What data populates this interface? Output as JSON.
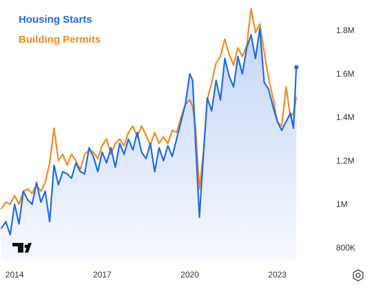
{
  "chart_data": {
    "type": "line",
    "title": "",
    "xlabel": "",
    "ylabel": "",
    "x_ticks": [
      "2014",
      "2017",
      "2020",
      "2023"
    ],
    "y_ticks": [
      "800K",
      "1M",
      "1.2M",
      "1.4M",
      "1.6M",
      "1.8M"
    ],
    "ylim": [
      800000,
      1900000
    ],
    "legend_position": "top-left",
    "grid": false,
    "series": [
      {
        "name": "Housing Starts",
        "color": "#1e6be6",
        "fill": "area",
        "points": [
          [
            2013.55,
            890000
          ],
          [
            2013.7,
            920000
          ],
          [
            2013.85,
            860000
          ],
          [
            2014.0,
            1000000
          ],
          [
            2014.15,
            910000
          ],
          [
            2014.3,
            1060000
          ],
          [
            2014.45,
            1020000
          ],
          [
            2014.6,
            1000000
          ],
          [
            2014.75,
            1100000
          ],
          [
            2014.9,
            1010000
          ],
          [
            2015.05,
            1060000
          ],
          [
            2015.2,
            920000
          ],
          [
            2015.35,
            1180000
          ],
          [
            2015.5,
            1090000
          ],
          [
            2015.65,
            1150000
          ],
          [
            2015.8,
            1140000
          ],
          [
            2015.95,
            1120000
          ],
          [
            2016.1,
            1190000
          ],
          [
            2016.25,
            1150000
          ],
          [
            2016.4,
            1140000
          ],
          [
            2016.55,
            1260000
          ],
          [
            2016.7,
            1220000
          ],
          [
            2016.85,
            1150000
          ],
          [
            2017.0,
            1240000
          ],
          [
            2017.15,
            1190000
          ],
          [
            2017.3,
            1260000
          ],
          [
            2017.45,
            1170000
          ],
          [
            2017.6,
            1280000
          ],
          [
            2017.75,
            1230000
          ],
          [
            2017.9,
            1300000
          ],
          [
            2018.05,
            1250000
          ],
          [
            2018.2,
            1330000
          ],
          [
            2018.35,
            1240000
          ],
          [
            2018.5,
            1210000
          ],
          [
            2018.65,
            1280000
          ],
          [
            2018.8,
            1150000
          ],
          [
            2018.95,
            1260000
          ],
          [
            2019.1,
            1200000
          ],
          [
            2019.25,
            1270000
          ],
          [
            2019.4,
            1220000
          ],
          [
            2019.55,
            1300000
          ],
          [
            2019.7,
            1380000
          ],
          [
            2019.85,
            1460000
          ],
          [
            2020.0,
            1600000
          ],
          [
            2020.1,
            1570000
          ],
          [
            2020.2,
            1280000
          ],
          [
            2020.33,
            940000
          ],
          [
            2020.47,
            1230000
          ],
          [
            2020.6,
            1490000
          ],
          [
            2020.75,
            1430000
          ],
          [
            2020.9,
            1570000
          ],
          [
            2021.05,
            1480000
          ],
          [
            2021.2,
            1670000
          ],
          [
            2021.35,
            1590000
          ],
          [
            2021.5,
            1540000
          ],
          [
            2021.65,
            1680000
          ],
          [
            2021.8,
            1600000
          ],
          [
            2021.95,
            1720000
          ],
          [
            2022.1,
            1780000
          ],
          [
            2022.25,
            1670000
          ],
          [
            2022.4,
            1810000
          ],
          [
            2022.55,
            1560000
          ],
          [
            2022.7,
            1530000
          ],
          [
            2022.85,
            1450000
          ],
          [
            2023.0,
            1380000
          ],
          [
            2023.15,
            1340000
          ],
          [
            2023.3,
            1380000
          ],
          [
            2023.45,
            1420000
          ],
          [
            2023.55,
            1350000
          ],
          [
            2023.65,
            1630000
          ]
        ]
      },
      {
        "name": "Building Permits",
        "color": "#f08a24",
        "fill": "none",
        "points": [
          [
            2013.55,
            980000
          ],
          [
            2013.7,
            1010000
          ],
          [
            2013.85,
            1000000
          ],
          [
            2014.0,
            1040000
          ],
          [
            2014.15,
            1000000
          ],
          [
            2014.3,
            1060000
          ],
          [
            2014.45,
            1070000
          ],
          [
            2014.6,
            1050000
          ],
          [
            2014.75,
            1090000
          ],
          [
            2014.9,
            1060000
          ],
          [
            2015.05,
            1100000
          ],
          [
            2015.2,
            1190000
          ],
          [
            2015.35,
            1350000
          ],
          [
            2015.5,
            1200000
          ],
          [
            2015.65,
            1230000
          ],
          [
            2015.8,
            1180000
          ],
          [
            2015.95,
            1230000
          ],
          [
            2016.1,
            1200000
          ],
          [
            2016.25,
            1160000
          ],
          [
            2016.4,
            1230000
          ],
          [
            2016.55,
            1250000
          ],
          [
            2016.7,
            1240000
          ],
          [
            2016.85,
            1210000
          ],
          [
            2017.0,
            1270000
          ],
          [
            2017.15,
            1300000
          ],
          [
            2017.3,
            1230000
          ],
          [
            2017.45,
            1280000
          ],
          [
            2017.6,
            1300000
          ],
          [
            2017.75,
            1270000
          ],
          [
            2017.9,
            1330000
          ],
          [
            2018.05,
            1360000
          ],
          [
            2018.2,
            1310000
          ],
          [
            2018.35,
            1360000
          ],
          [
            2018.5,
            1320000
          ],
          [
            2018.65,
            1270000
          ],
          [
            2018.8,
            1330000
          ],
          [
            2018.95,
            1280000
          ],
          [
            2019.1,
            1310000
          ],
          [
            2019.25,
            1280000
          ],
          [
            2019.4,
            1340000
          ],
          [
            2019.55,
            1330000
          ],
          [
            2019.7,
            1400000
          ],
          [
            2019.85,
            1460000
          ],
          [
            2020.0,
            1480000
          ],
          [
            2020.1,
            1450000
          ],
          [
            2020.2,
            1350000
          ],
          [
            2020.33,
            1070000
          ],
          [
            2020.47,
            1240000
          ],
          [
            2020.6,
            1480000
          ],
          [
            2020.75,
            1560000
          ],
          [
            2020.9,
            1650000
          ],
          [
            2021.05,
            1680000
          ],
          [
            2021.2,
            1760000
          ],
          [
            2021.35,
            1690000
          ],
          [
            2021.5,
            1640000
          ],
          [
            2021.65,
            1720000
          ],
          [
            2021.8,
            1680000
          ],
          [
            2021.95,
            1730000
          ],
          [
            2022.1,
            1900000
          ],
          [
            2022.25,
            1790000
          ],
          [
            2022.4,
            1830000
          ],
          [
            2022.55,
            1700000
          ],
          [
            2022.7,
            1580000
          ],
          [
            2022.85,
            1490000
          ],
          [
            2023.0,
            1380000
          ],
          [
            2023.15,
            1360000
          ],
          [
            2023.3,
            1540000
          ],
          [
            2023.45,
            1400000
          ],
          [
            2023.55,
            1420000
          ],
          [
            2023.65,
            1490000
          ]
        ]
      }
    ]
  },
  "legend": {
    "starts_label": "Housing Starts",
    "permits_label": "Building Permits"
  },
  "icons": {
    "settings": "gear-icon",
    "logo": "tradingview-logo"
  }
}
